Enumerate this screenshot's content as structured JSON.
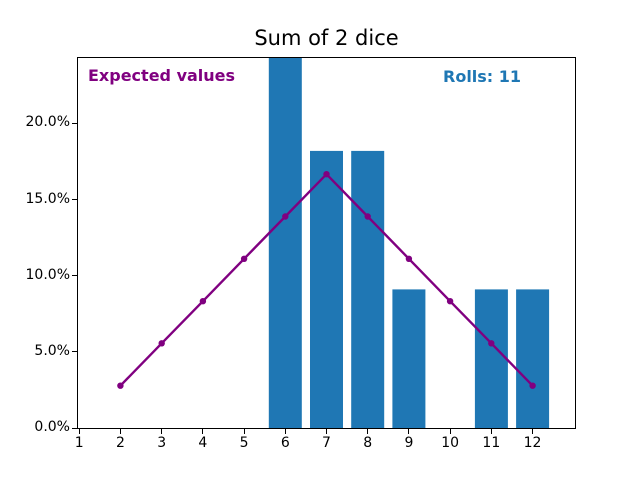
{
  "figure": {
    "background": "#ffffff"
  },
  "chart_data": {
    "type": "bar+line",
    "title": "Sum of 2 dice",
    "xlabel": "",
    "ylabel": "",
    "xlim": [
      0.97,
      13.03
    ],
    "ylim": [
      0,
      24.3
    ],
    "grid": false,
    "legend": "none",
    "xticks": {
      "values": [
        1,
        2,
        3,
        4,
        5,
        6,
        7,
        8,
        9,
        10,
        11,
        12
      ],
      "labels": [
        "1",
        "2",
        "3",
        "4",
        "5",
        "6",
        "7",
        "8",
        "9",
        "10",
        "11",
        "12"
      ]
    },
    "yticks": {
      "values": [
        0,
        5,
        10,
        15,
        20
      ],
      "labels": [
        "0.0%",
        "5.0%",
        "10.0%",
        "15.0%",
        "20.0%"
      ]
    },
    "bar_series": {
      "name": "rolls",
      "x": [
        6,
        7,
        8,
        9,
        11,
        12
      ],
      "values": [
        36.4,
        18.2,
        18.2,
        9.1,
        9.1,
        9.1
      ],
      "color": "#1f77b4",
      "bar_width": 0.8
    },
    "line_series": {
      "name": "expected",
      "x": [
        2,
        3,
        4,
        5,
        6,
        7,
        8,
        9,
        10,
        11,
        12
      ],
      "values": [
        2.78,
        5.56,
        8.33,
        11.11,
        13.89,
        16.67,
        13.89,
        11.11,
        8.33,
        5.56,
        2.78
      ],
      "color": "#800080",
      "marker": "circle",
      "line_width": 2.4
    },
    "annotations": [
      {
        "text": "Expected values",
        "color": "#800080",
        "position": "top-left"
      },
      {
        "text": "Rolls: 11",
        "color": "#1f77b4",
        "position": "top-right"
      }
    ]
  }
}
